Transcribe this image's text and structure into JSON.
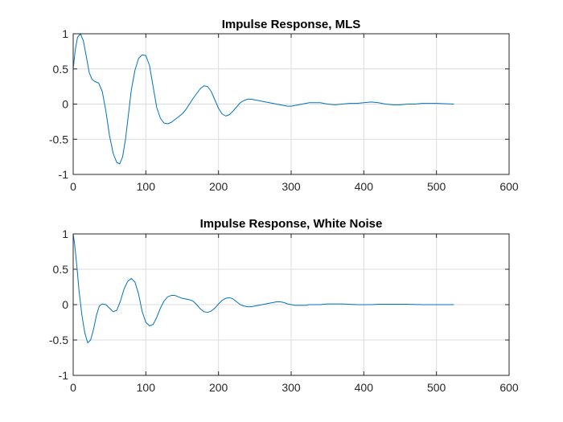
{
  "chart_data": [
    {
      "type": "line",
      "title": "Impulse Response, MLS",
      "xlabel": "",
      "ylabel": "",
      "xlim": [
        0,
        600
      ],
      "ylim": [
        -1,
        1
      ],
      "xticks": [
        0,
        100,
        200,
        300,
        400,
        500,
        600
      ],
      "yticks": [
        -1,
        -0.5,
        0,
        0.5,
        1
      ],
      "xtick_labels": [
        "0",
        "100",
        "200",
        "300",
        "400",
        "500",
        "600"
      ],
      "ytick_labels": [
        "-1",
        "-0.5",
        "0",
        "0.5",
        "1"
      ],
      "grid": true,
      "color": "#0072BD",
      "series": [
        {
          "x": [
            0,
            3,
            6,
            10,
            14,
            18,
            22,
            26,
            30,
            35,
            40,
            45,
            50,
            55,
            60,
            64,
            68,
            72,
            76,
            80,
            85,
            90,
            95,
            100,
            105,
            110,
            115,
            120,
            125,
            130,
            135,
            140,
            145,
            150,
            155,
            160,
            165,
            170,
            175,
            180,
            185,
            190,
            195,
            200,
            205,
            210,
            215,
            220,
            225,
            230,
            235,
            240,
            245,
            250,
            255,
            260,
            265,
            270,
            275,
            280,
            285,
            290,
            295,
            300,
            305,
            310,
            315,
            320,
            325,
            330,
            335,
            340,
            345,
            350,
            360,
            370,
            380,
            390,
            400,
            410,
            420,
            430,
            440,
            450,
            460,
            470,
            480,
            490,
            500,
            510,
            524
          ],
          "y": [
            0.5,
            0.78,
            0.95,
            1.0,
            0.9,
            0.68,
            0.45,
            0.35,
            0.32,
            0.3,
            0.18,
            -0.1,
            -0.45,
            -0.7,
            -0.83,
            -0.85,
            -0.75,
            -0.5,
            -0.15,
            0.2,
            0.48,
            0.65,
            0.7,
            0.69,
            0.55,
            0.25,
            -0.05,
            -0.2,
            -0.27,
            -0.28,
            -0.26,
            -0.22,
            -0.18,
            -0.14,
            -0.08,
            0.0,
            0.08,
            0.15,
            0.22,
            0.26,
            0.25,
            0.18,
            0.06,
            -0.06,
            -0.14,
            -0.17,
            -0.15,
            -0.1,
            -0.04,
            0.02,
            0.05,
            0.07,
            0.07,
            0.06,
            0.05,
            0.04,
            0.03,
            0.02,
            0.01,
            0.0,
            -0.01,
            -0.02,
            -0.03,
            -0.03,
            -0.02,
            -0.01,
            0.0,
            0.01,
            0.02,
            0.02,
            0.02,
            0.02,
            0.01,
            0.0,
            -0.01,
            0.0,
            0.01,
            0.01,
            0.02,
            0.03,
            0.02,
            0.0,
            -0.01,
            -0.01,
            0.0,
            0.0,
            0.01,
            0.01,
            0.01,
            0.005,
            0.0
          ]
        }
      ]
    },
    {
      "type": "line",
      "title": "Impulse Response, White Noise",
      "xlabel": "",
      "ylabel": "",
      "xlim": [
        0,
        600
      ],
      "ylim": [
        -1,
        1
      ],
      "xticks": [
        0,
        100,
        200,
        300,
        400,
        500,
        600
      ],
      "yticks": [
        -1,
        -0.5,
        0,
        0.5,
        1
      ],
      "xtick_labels": [
        "0",
        "100",
        "200",
        "300",
        "400",
        "500",
        "600"
      ],
      "ytick_labels": [
        "-1",
        "-0.5",
        "0",
        "0.5",
        "1"
      ],
      "grid": true,
      "color": "#0072BD",
      "series": [
        {
          "x": [
            0,
            2,
            5,
            8,
            12,
            16,
            20,
            24,
            28,
            32,
            36,
            40,
            45,
            50,
            55,
            60,
            65,
            70,
            75,
            80,
            85,
            90,
            95,
            100,
            105,
            110,
            115,
            120,
            125,
            130,
            135,
            140,
            145,
            150,
            155,
            160,
            165,
            170,
            175,
            180,
            185,
            190,
            195,
            200,
            205,
            210,
            215,
            220,
            225,
            230,
            235,
            240,
            245,
            250,
            255,
            260,
            265,
            270,
            275,
            280,
            285,
            290,
            295,
            300,
            305,
            310,
            315,
            320,
            325,
            330,
            335,
            340,
            345,
            350,
            360,
            370,
            380,
            390,
            400,
            410,
            420,
            430,
            440,
            450,
            460,
            470,
            480,
            490,
            500,
            510,
            524
          ],
          "y": [
            1.0,
            0.85,
            0.55,
            0.2,
            -0.15,
            -0.4,
            -0.54,
            -0.5,
            -0.35,
            -0.15,
            -0.02,
            0.01,
            0.0,
            -0.05,
            -0.1,
            -0.08,
            0.05,
            0.22,
            0.33,
            0.37,
            0.32,
            0.15,
            -0.1,
            -0.25,
            -0.3,
            -0.28,
            -0.18,
            -0.05,
            0.05,
            0.11,
            0.13,
            0.13,
            0.11,
            0.09,
            0.08,
            0.07,
            0.05,
            0.0,
            -0.06,
            -0.1,
            -0.11,
            -0.09,
            -0.05,
            0.01,
            0.06,
            0.09,
            0.1,
            0.08,
            0.04,
            0.0,
            -0.02,
            -0.03,
            -0.03,
            -0.02,
            -0.01,
            0.0,
            0.01,
            0.02,
            0.03,
            0.04,
            0.04,
            0.03,
            0.01,
            0.0,
            -0.01,
            -0.01,
            -0.01,
            -0.01,
            0.0,
            0.0,
            0.0,
            0.0,
            0.005,
            0.01,
            0.01,
            0.01,
            0.005,
            0.0,
            0.0,
            0.0,
            0.005,
            0.005,
            0.005,
            0.005,
            0.005,
            0.003,
            0.0,
            0.0,
            0.0,
            0.0,
            0.0
          ]
        }
      ]
    }
  ]
}
